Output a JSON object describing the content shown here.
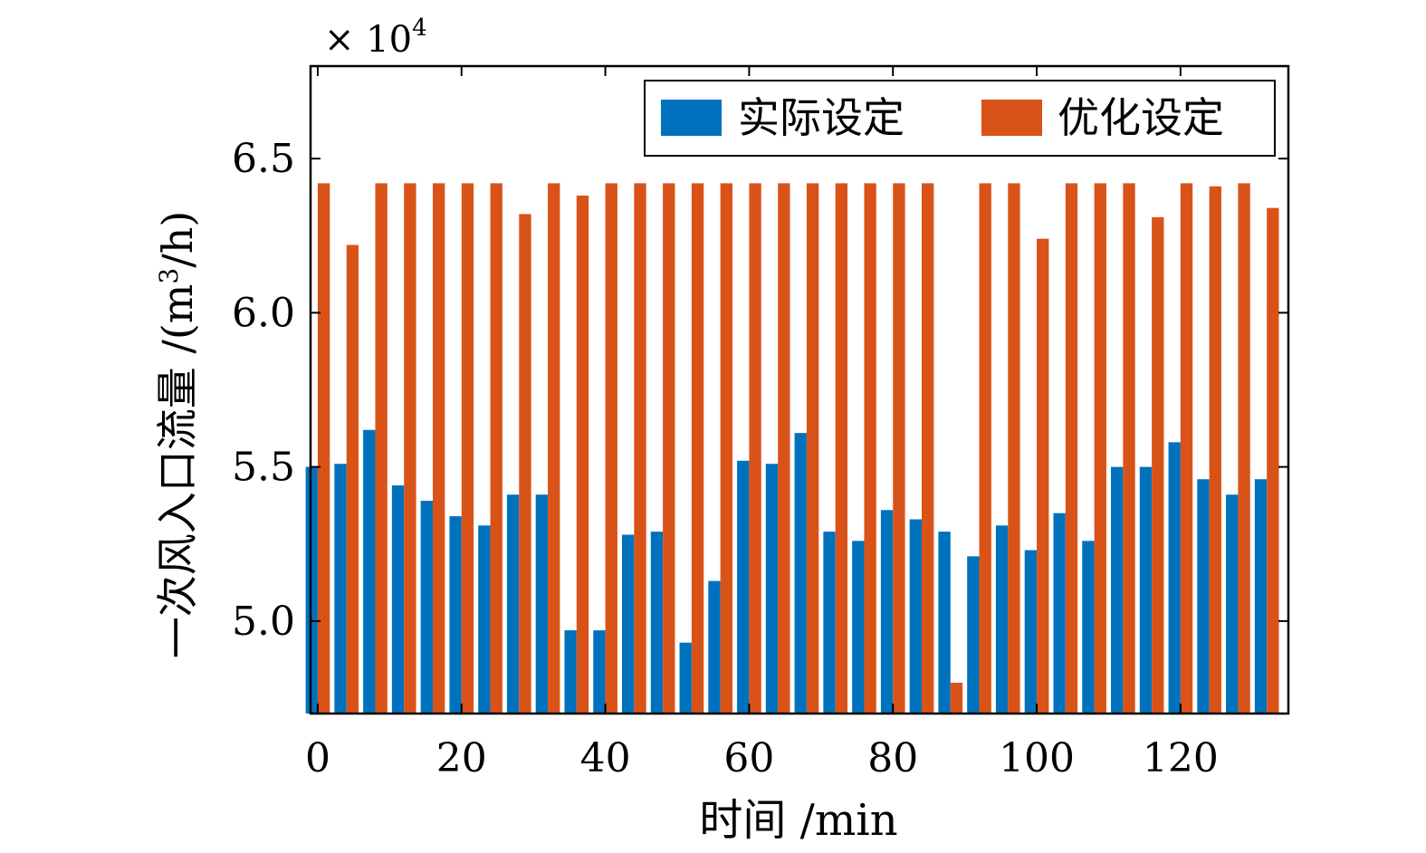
{
  "chart_data": {
    "type": "bar",
    "xlabel": "时间 /min",
    "ylabel": "一次风入口流量 /(m³/h)",
    "ylabel_parts": {
      "main": "一次风入口流量 /(m",
      "sup": "3",
      "tail": "/h)"
    },
    "scale_note": {
      "prefix": "× 10",
      "exponent": "4"
    },
    "xlim": [
      -1,
      135
    ],
    "ylim": [
      4.7,
      6.8
    ],
    "xticks": [
      0,
      20,
      40,
      60,
      80,
      100,
      120
    ],
    "yticks": [
      5.0,
      5.5,
      6.0,
      6.5
    ],
    "ytick_labels": [
      "5.0",
      "5.5",
      "6.0",
      "6.5"
    ],
    "legend_position": "top-right",
    "bar_group_width": 4,
    "x": [
      0,
      4,
      8,
      12,
      16,
      20,
      24,
      28,
      32,
      36,
      40,
      44,
      48,
      52,
      56,
      60,
      64,
      68,
      72,
      76,
      80,
      84,
      88,
      92,
      96,
      100,
      104,
      108,
      112,
      116,
      120,
      124,
      128,
      132
    ],
    "series": [
      {
        "name": "实际设定",
        "color": "#0072BD",
        "values": [
          5.5,
          5.51,
          5.62,
          5.44,
          5.39,
          5.34,
          5.31,
          5.41,
          5.41,
          4.97,
          4.97,
          5.28,
          5.29,
          4.93,
          5.13,
          5.52,
          5.51,
          5.61,
          5.29,
          5.26,
          5.36,
          5.33,
          5.29,
          5.21,
          5.31,
          5.23,
          5.35,
          5.26,
          5.5,
          5.5,
          5.58,
          5.46,
          5.41,
          5.46
        ]
      },
      {
        "name": "优化设定",
        "color": "#D95319",
        "values": [
          6.42,
          6.22,
          6.42,
          6.42,
          6.42,
          6.42,
          6.42,
          6.32,
          6.42,
          6.38,
          6.42,
          6.42,
          6.42,
          6.42,
          6.42,
          6.42,
          6.42,
          6.42,
          6.42,
          6.42,
          6.42,
          6.42,
          4.8,
          6.42,
          6.42,
          6.24,
          6.42,
          6.42,
          6.42,
          6.31,
          6.42,
          6.41,
          6.42,
          6.34
        ]
      }
    ]
  }
}
